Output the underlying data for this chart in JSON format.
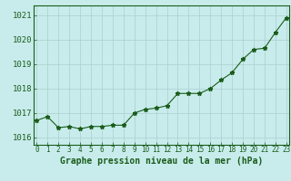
{
  "x": [
    0,
    1,
    2,
    3,
    4,
    5,
    6,
    7,
    8,
    9,
    10,
    11,
    12,
    13,
    14,
    15,
    16,
    17,
    18,
    19,
    20,
    21,
    22,
    23
  ],
  "y": [
    1016.7,
    1016.85,
    1016.4,
    1016.45,
    1016.35,
    1016.45,
    1016.45,
    1016.5,
    1016.5,
    1017.0,
    1017.15,
    1017.2,
    1017.3,
    1017.8,
    1017.8,
    1017.8,
    1018.0,
    1018.35,
    1018.65,
    1019.2,
    1019.6,
    1019.65,
    1020.3,
    1020.9
  ],
  "line_color": "#1a5c1a",
  "marker": "*",
  "marker_size": 3.5,
  "background_color": "#c8ecec",
  "grid_color": "#aacfcf",
  "xlabel": "Graphe pression niveau de la mer (hPa)",
  "xlabel_fontsize": 7,
  "xlabel_color": "#1a5c1a",
  "tick_label_color": "#1a5c1a",
  "ytick_fontsize": 6.5,
  "xtick_fontsize": 5.5,
  "ylim": [
    1015.7,
    1021.4
  ],
  "yticks": [
    1016,
    1017,
    1018,
    1019,
    1020,
    1021
  ],
  "xticks": [
    0,
    1,
    2,
    3,
    4,
    5,
    6,
    7,
    8,
    9,
    10,
    11,
    12,
    13,
    14,
    15,
    16,
    17,
    18,
    19,
    20,
    21,
    22,
    23
  ],
  "xlim": [
    -0.3,
    23.3
  ]
}
